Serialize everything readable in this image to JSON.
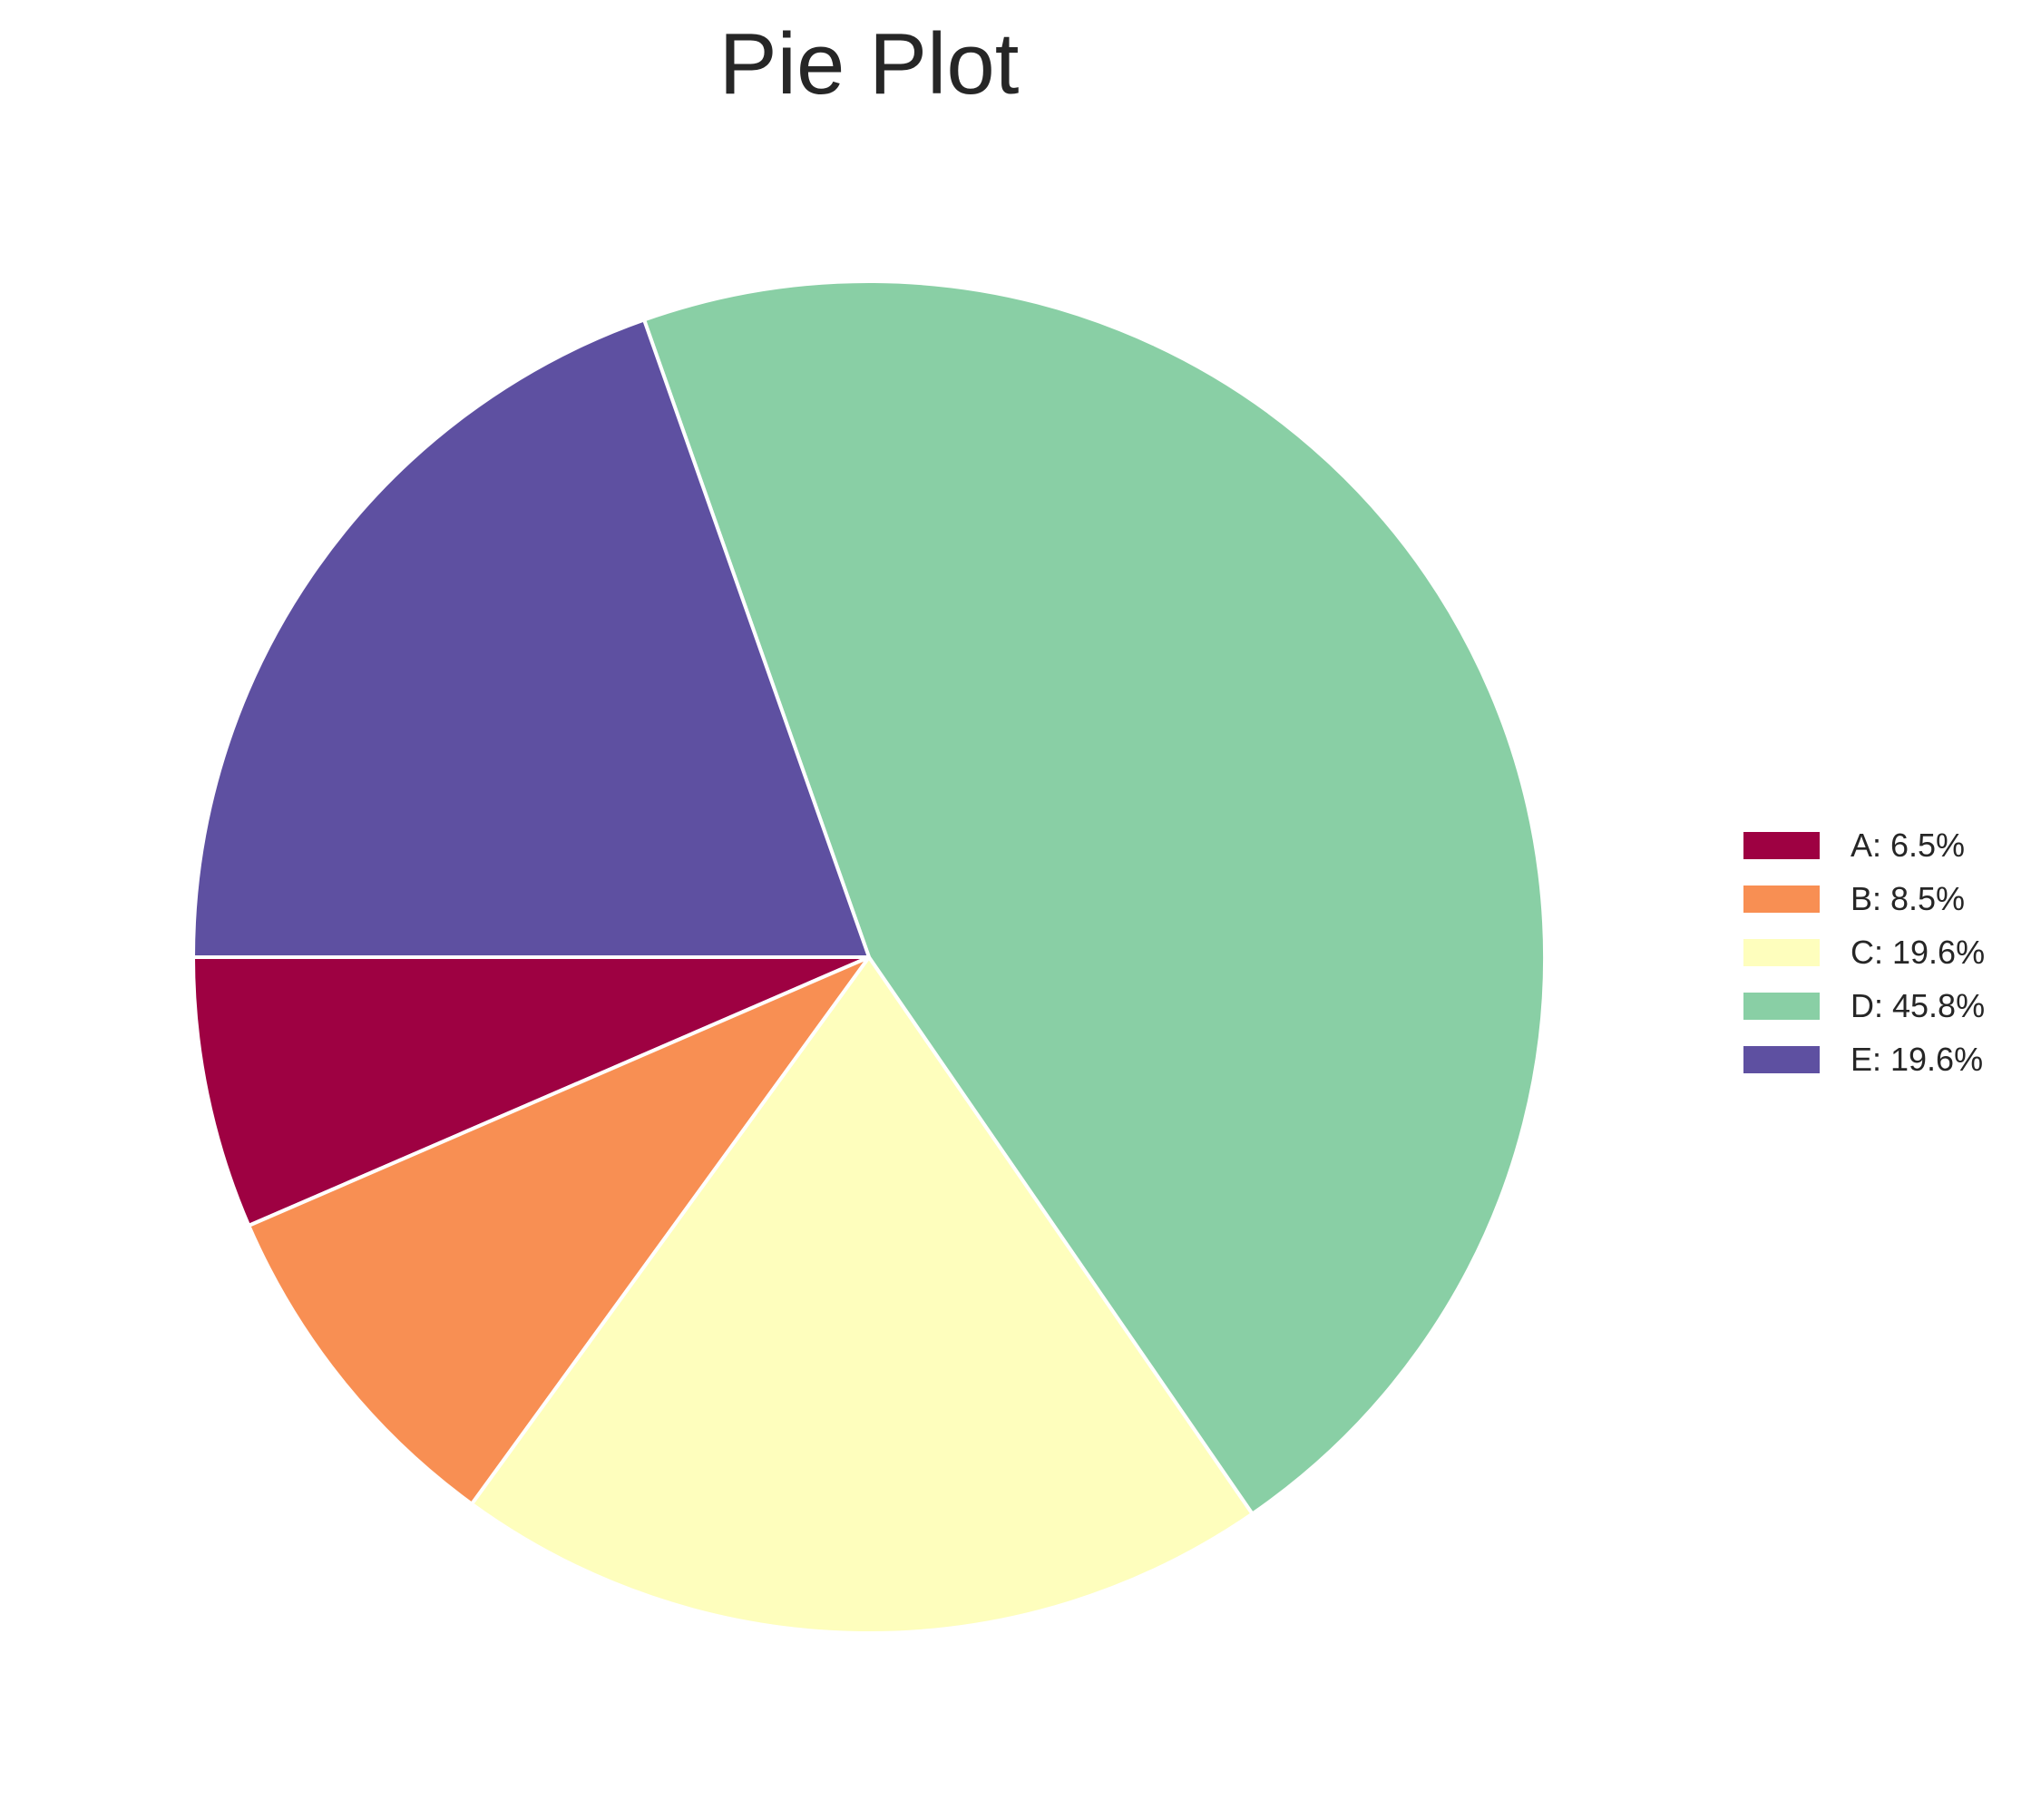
{
  "chart_data": {
    "type": "pie",
    "title": "Pie Plot",
    "categories": [
      "A",
      "B",
      "C",
      "D",
      "E"
    ],
    "values": [
      6.5,
      8.5,
      19.6,
      45.8,
      19.6
    ],
    "legend_labels": [
      "A: 6.5%",
      "B: 8.5%",
      "C: 19.6%",
      "D: 45.8%",
      "E: 19.6%"
    ],
    "colors": [
      "#9e0142",
      "#f88f53",
      "#fefebd",
      "#89cfa5",
      "#5e50a1"
    ],
    "legend_position": "center-right",
    "start_angle_deg": 180,
    "direction": "counterclockwise",
    "edge_color": "#ffffff"
  }
}
